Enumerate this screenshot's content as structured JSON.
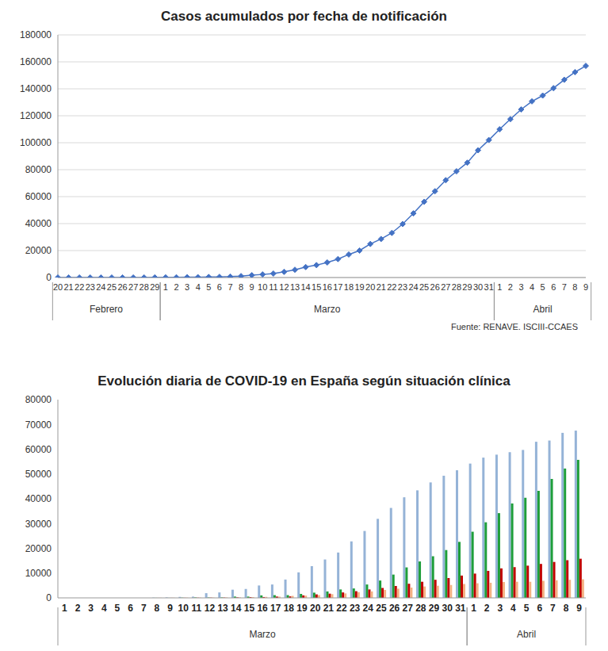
{
  "chart_data": [
    {
      "type": "line",
      "title": "Casos acumulados por fecha de notificación",
      "categories": [
        "20",
        "21",
        "22",
        "23",
        "24",
        "25",
        "26",
        "27",
        "28",
        "29",
        "1",
        "2",
        "3",
        "4",
        "5",
        "6",
        "7",
        "8",
        "9",
        "10",
        "11",
        "12",
        "13",
        "14",
        "15",
        "16",
        "17",
        "18",
        "19",
        "20",
        "21",
        "22",
        "23",
        "24",
        "25",
        "26",
        "27",
        "28",
        "29",
        "30",
        "31",
        "1",
        "2",
        "3",
        "4",
        "5",
        "6",
        "7",
        "8",
        "9"
      ],
      "x_groups": [
        {
          "label": "Febrero",
          "from": 0,
          "to": 9
        },
        {
          "label": "Marzo",
          "from": 10,
          "to": 40
        },
        {
          "label": "Abril",
          "from": 41,
          "to": 49
        }
      ],
      "values": [
        3,
        3,
        3,
        3,
        4,
        12,
        23,
        32,
        45,
        84,
        120,
        165,
        222,
        260,
        400,
        500,
        670,
        1070,
        1700,
        2280,
        2950,
        4200,
        5750,
        7750,
        9200,
        11200,
        13700,
        17100,
        20000,
        24900,
        28600,
        33100,
        39700,
        47600,
        56200,
        64000,
        72200,
        78800,
        85200,
        94400,
        102000,
        110000,
        117500,
        124700,
        130700,
        135000,
        140500,
        146700,
        152400,
        157000
      ],
      "color": "#4472c4",
      "marker": "diamond",
      "ylim": [
        0,
        180000
      ],
      "yticks": [
        0,
        20000,
        40000,
        60000,
        80000,
        100000,
        120000,
        140000,
        160000,
        180000
      ],
      "grid": true,
      "source": "Fuente: RENAVE. ISCIII-CCAES"
    },
    {
      "type": "bar",
      "title": "Evolución diaria de COVID-19 en España según situación clínica",
      "categories": [
        "1",
        "2",
        "3",
        "4",
        "5",
        "6",
        "7",
        "8",
        "9",
        "10",
        "11",
        "12",
        "13",
        "14",
        "15",
        "16",
        "17",
        "18",
        "19",
        "20",
        "21",
        "22",
        "23",
        "24",
        "25",
        "26",
        "27",
        "28",
        "29",
        "30",
        "31",
        "1",
        "2",
        "3",
        "4",
        "5",
        "6",
        "7",
        "8",
        "9"
      ],
      "x_groups": [
        {
          "label": "Marzo",
          "from": 0,
          "to": 30
        },
        {
          "label": "Abril",
          "from": 31,
          "to": 39
        }
      ],
      "series": [
        {
          "color": "#95b3d7",
          "values": [
            0,
            0,
            0,
            0,
            0,
            0,
            0,
            100,
            200,
            400,
            500,
            1900,
            2200,
            3300,
            3600,
            5000,
            5400,
            7400,
            10300,
            12800,
            15500,
            18300,
            22800,
            27000,
            31900,
            36300,
            40600,
            43400,
            46600,
            49300,
            51500,
            54200,
            56600,
            57800,
            58800,
            59700,
            63000,
            63500,
            66600,
            67500
          ]
        },
        {
          "color": "#1e9e3a",
          "values": [
            0,
            0,
            0,
            0,
            0,
            0,
            0,
            30,
            30,
            100,
            180,
            190,
            190,
            520,
            520,
            1000,
            1100,
            1100,
            1600,
            2100,
            2600,
            3400,
            3800,
            5400,
            7000,
            9400,
            12300,
            14700,
            16800,
            19300,
            22600,
            26700,
            30500,
            34200,
            38100,
            40400,
            43200,
            48000,
            52200,
            55700
          ]
        },
        {
          "color": "#c00000",
          "values": [
            0,
            0,
            0,
            0,
            0,
            0,
            0,
            20,
            30,
            50,
            80,
            100,
            130,
            200,
            300,
            340,
            530,
            600,
            1000,
            1400,
            1700,
            2200,
            2700,
            3400,
            4000,
            4800,
            5700,
            6500,
            7300,
            8000,
            9000,
            9800,
            10900,
            11900,
            12400,
            13000,
            13700,
            14500,
            15200,
            15800
          ]
        },
        {
          "color": "#f4b183",
          "values": [
            0,
            0,
            0,
            0,
            0,
            0,
            0,
            50,
            60,
            80,
            100,
            100,
            150,
            200,
            300,
            400,
            500,
            800,
            900,
            1100,
            1500,
            1800,
            2300,
            2600,
            3200,
            3700,
            4200,
            4600,
            4900,
            5200,
            5600,
            5900,
            6100,
            6400,
            6500,
            6500,
            6900,
            7100,
            7300,
            7500
          ]
        }
      ],
      "ylim": [
        0,
        80000
      ],
      "yticks": [
        0,
        10000,
        20000,
        30000,
        40000,
        50000,
        60000,
        70000,
        80000
      ],
      "grid": false
    }
  ]
}
